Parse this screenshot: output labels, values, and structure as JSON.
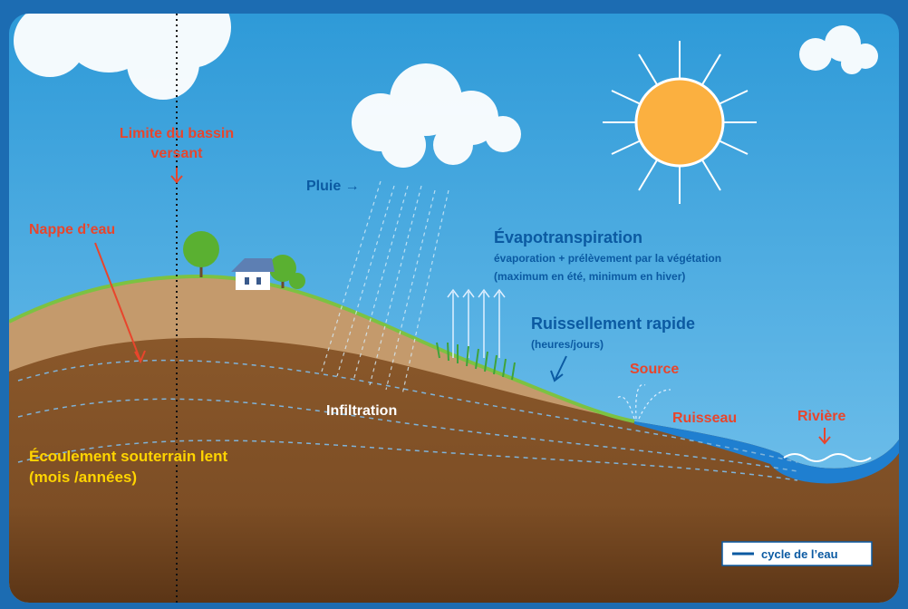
{
  "labels": {
    "watershed": [
      "Limite du bassin",
      "versant"
    ],
    "rain": "Pluie →",
    "aquifer": "Nappe d’eau",
    "evapo": {
      "title": "Évapotranspiration",
      "lines": [
        "évaporation + prélèvement par la végétation",
        "(maximum en été, minimum en hiver)"
      ]
    },
    "runoff": {
      "title": "Ruissellement rapide",
      "sub": "(heures/jours)"
    },
    "source": "Source",
    "stream": "Ruisseau",
    "river": "Rivière",
    "infiltration": "Infiltration",
    "groundflow": {
      "title": "Écoulement souterrain lent",
      "sub": "(mois /années)"
    },
    "legend": "cycle de l’eau"
  }
}
